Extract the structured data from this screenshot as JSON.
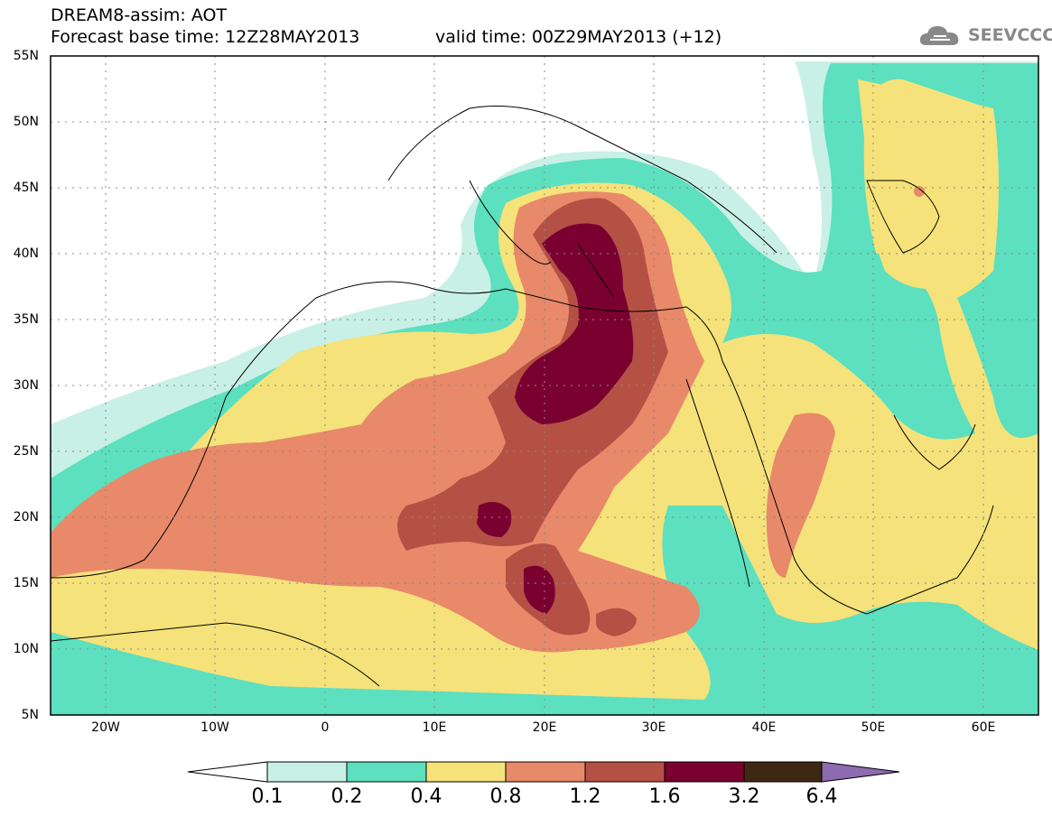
{
  "header": {
    "title_line1": "DREAM8-assim: AOT",
    "title_line2": "Forecast base time: 12Z28MAY2013",
    "valid_time": "valid time: 00Z29MAY2013 (+12)",
    "logo_text": "SEEVCCC"
  },
  "map": {
    "variable": "AOT",
    "model": "DREAM8-assim",
    "lon_range": [
      -25,
      65
    ],
    "lat_range": [
      5,
      55
    ],
    "lat_labels": [
      "55N",
      "50N",
      "45N",
      "40N",
      "35N",
      "30N",
      "25N",
      "20N",
      "15N",
      "10N",
      "5N"
    ],
    "lon_labels": [
      "20W",
      "10W",
      "0",
      "10E",
      "20E",
      "30E",
      "40E",
      "50E",
      "60E"
    ],
    "gridlines": true
  },
  "colorbar": {
    "levels": [
      "0.1",
      "0.2",
      "0.4",
      "0.8",
      "1.2",
      "1.6",
      "3.2",
      "6.4"
    ],
    "colors": [
      "#c8f0e6",
      "#5ce0bf",
      "#f5e27a",
      "#e8896a",
      "#b55045",
      "#7a0030",
      "#3d2814",
      "#8c6bb1"
    ],
    "extend": "both"
  },
  "icons": {
    "logo": "cloud-logo-icon"
  }
}
